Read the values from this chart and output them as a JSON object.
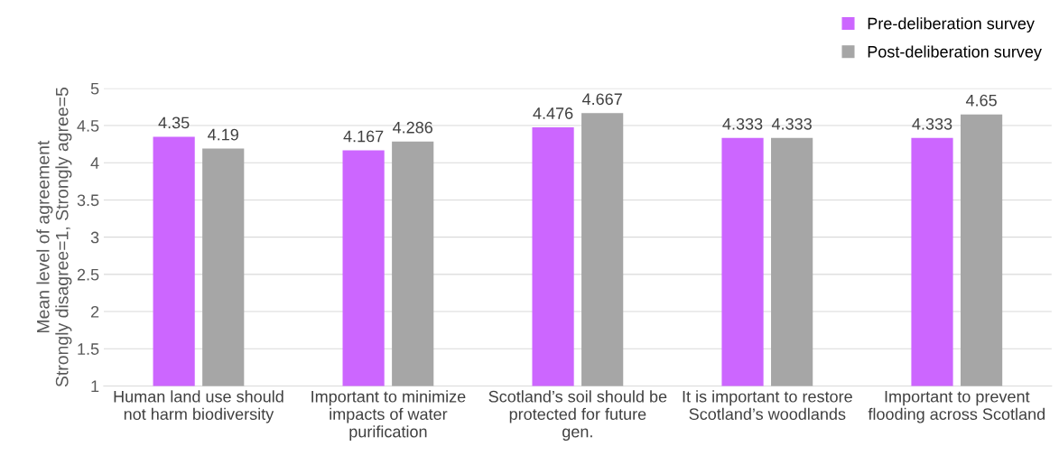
{
  "chart_data": {
    "type": "bar",
    "ylabel": "Mean level of agreement\nStrongly disagree=1, Strongly agree=5",
    "categories": [
      "Human land use should\nnot harm biodiversity",
      "Important to minimize\nimpacts of water\npurification",
      "Scotland’s soil should be\nprotected for future\ngen.",
      "It is important to restore\nScotland’s woodlands",
      "Important to prevent\nflooding across Scotland"
    ],
    "series": [
      {
        "name": "Pre-deliberation survey",
        "color": "#cc66ff",
        "values": [
          4.35,
          4.167,
          4.476,
          4.333,
          4.333
        ]
      },
      {
        "name": "Post-deliberation survey",
        "color": "#a6a6a6",
        "values": [
          4.19,
          4.286,
          4.667,
          4.333,
          4.65
        ]
      }
    ],
    "ylim": [
      1,
      5
    ],
    "yticks": [
      1,
      1.5,
      2,
      2.5,
      3,
      3.5,
      4,
      4.5,
      5
    ],
    "grid": "y",
    "legend": "top right",
    "data_labels": true
  }
}
